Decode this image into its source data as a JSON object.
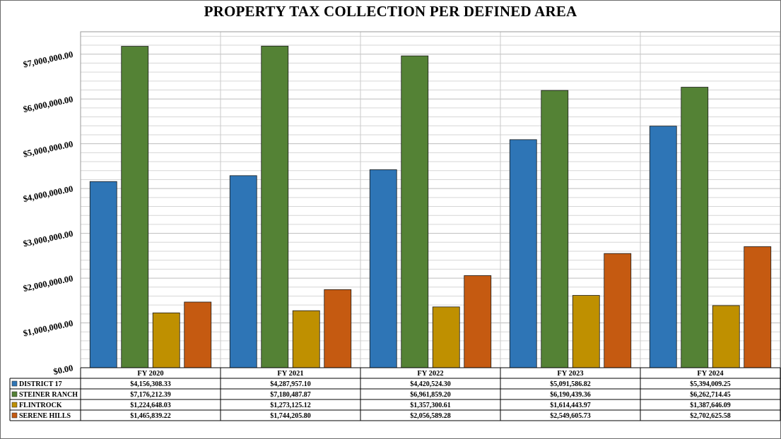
{
  "chart_data": {
    "type": "bar",
    "title": "PROPERTY TAX COLLECTION PER DEFINED AREA",
    "categories": [
      "FY 2020",
      "FY 2021",
      "FY 2022",
      "FY 2023",
      "FY 2024"
    ],
    "ylim": [
      0,
      7500000
    ],
    "ytick_values": [
      0,
      1000000,
      2000000,
      3000000,
      4000000,
      5000000,
      6000000,
      7000000
    ],
    "ytick_labels": [
      "$0.00",
      "$1,000,000.00",
      "$2,000,000.00",
      "$3,000,000.00",
      "$4,000,000.00",
      "$5,000,000.00",
      "$6,000,000.00",
      "$7,000,000.00"
    ],
    "minor_grid_step": 200000,
    "grid": true,
    "series": [
      {
        "name": "DISTRICT 17",
        "color": "#2e75b6",
        "values": [
          4156308.33,
          4287957.1,
          4420524.3,
          5091586.82,
          5394009.25
        ],
        "labels": [
          "$4,156,308.33",
          "$4,287,957.10",
          "$4,420,524.30",
          "$5,091,586.82",
          "$5,394,009.25"
        ]
      },
      {
        "name": "STEINER RANCH",
        "color": "#548235",
        "values": [
          7176212.39,
          7180487.87,
          6961859.2,
          6190439.36,
          6262714.45
        ],
        "labels": [
          "$7,176,212.39",
          "$7,180,487.87",
          "$6,961,859.20",
          "$6,190,439.36",
          "$6,262,714.45"
        ]
      },
      {
        "name": "FLINTROCK",
        "color": "#bf9000",
        "values": [
          1224648.03,
          1273125.12,
          1357300.61,
          1614443.97,
          1387646.09
        ],
        "labels": [
          "$1,224,648.03",
          "$1,273,125.12",
          "$1,357,300.61",
          "$1,614,443.97",
          "$1,387,646.09"
        ]
      },
      {
        "name": "SERENE HILLS",
        "color": "#c55a11",
        "values": [
          1465839.22,
          1744205.8,
          2056589.28,
          2549605.73,
          2702625.58
        ],
        "labels": [
          "$1,465,839.22",
          "$1,744,205.80",
          "$2,056,589.28",
          "$2,549,605.73",
          "$2,702,625.58"
        ]
      }
    ]
  }
}
